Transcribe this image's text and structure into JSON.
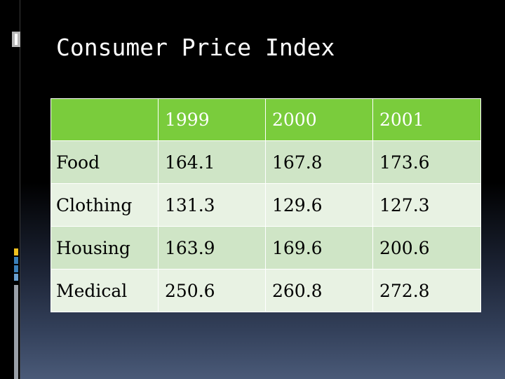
{
  "slide": {
    "title": "Consumer Price Index"
  },
  "table": {
    "header": [
      "",
      "1999",
      "2000",
      "2001"
    ],
    "rows": [
      {
        "label": "Food",
        "values": [
          "164.1",
          "167.8",
          "173.6"
        ]
      },
      {
        "label": "Clothing",
        "values": [
          "131.3",
          "129.6",
          "127.3"
        ]
      },
      {
        "label": "Housing",
        "values": [
          "163.9",
          "169.6",
          "200.6"
        ]
      },
      {
        "label": "Medical",
        "values": [
          "250.6",
          "260.8",
          "272.8"
        ]
      }
    ]
  },
  "colors": {
    "header_fill": "#7acc3c",
    "row_fill_dark": "#cfe5c6",
    "row_fill_light": "#e8f2e3",
    "title_text": "#ffffff"
  }
}
